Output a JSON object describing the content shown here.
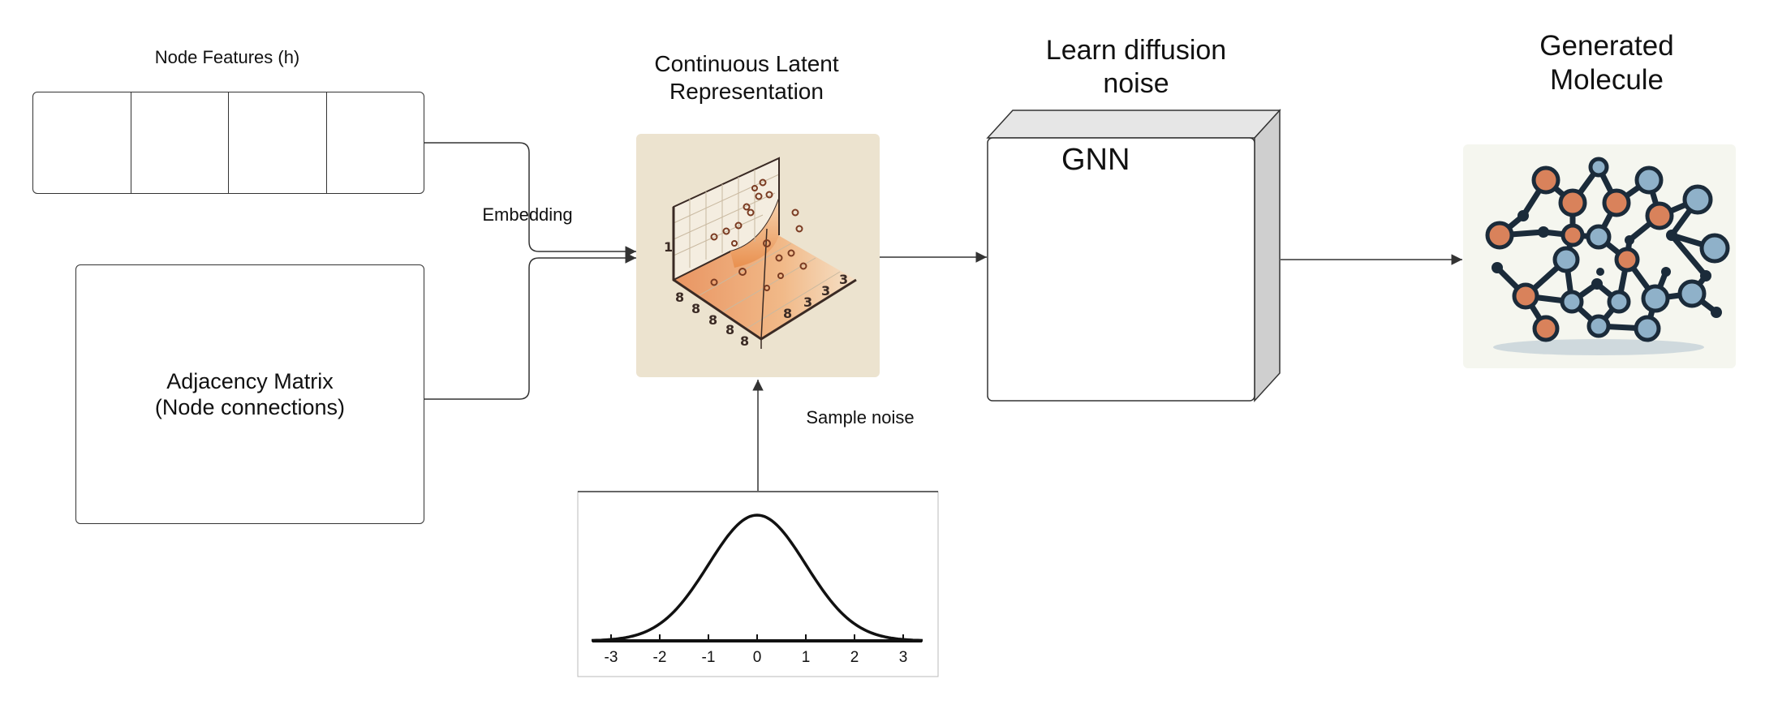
{
  "labels": {
    "node_features": "Node Features (h)",
    "embedding": "Embedding",
    "adjacency_matrix": "Adjacency Matrix\n(Node connections)",
    "latent_title": "Continuous Latent\nRepresentation",
    "sample_noise": "Sample noise",
    "learn_noise_title": "Learn diffusion\nnoise",
    "gnn": "GNN",
    "generated_title": "Generated\nMolecule"
  },
  "gaussian": {
    "ticks": [
      "-3",
      "-2",
      "-1",
      "0",
      "1",
      "2",
      "3"
    ]
  },
  "colors": {
    "stroke": "#333333",
    "latent_bg": "#ece3cf",
    "orange": "#d9825b",
    "blue": "#8fb1c9",
    "navy": "#1b2b3a",
    "cube_side": "#cfcfcf",
    "cube_top": "#e6e6e6"
  }
}
